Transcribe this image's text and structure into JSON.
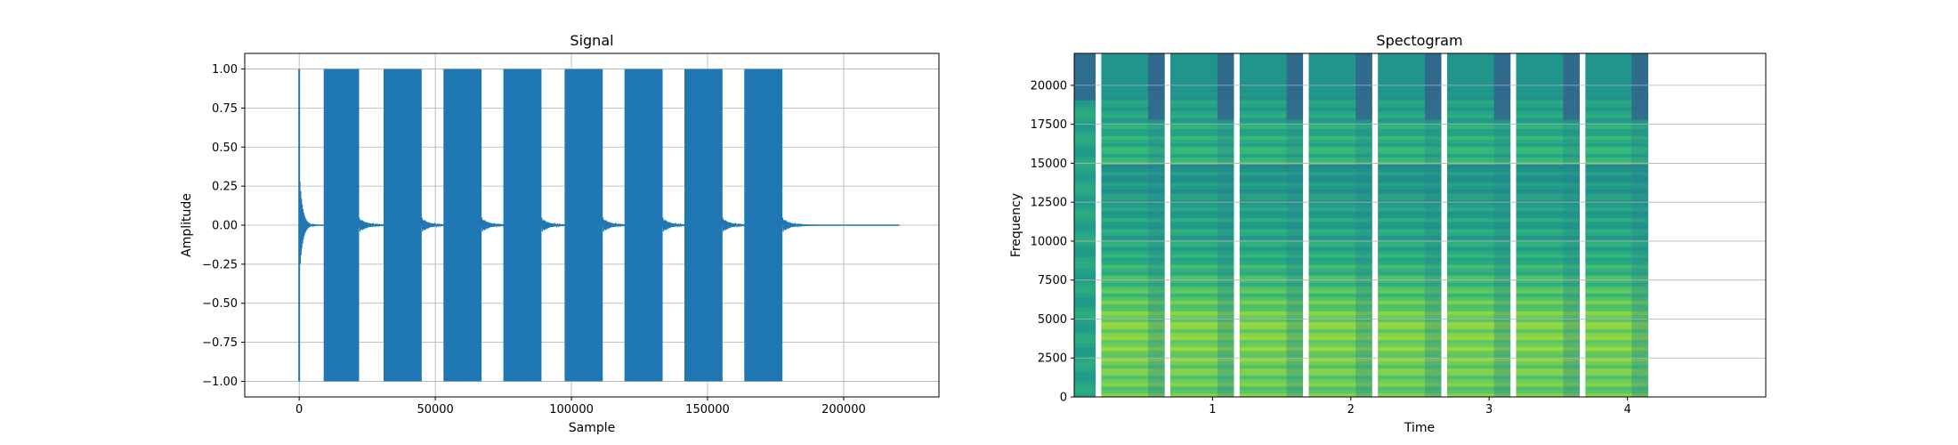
{
  "chart_data": [
    {
      "type": "line",
      "title": "Signal",
      "xlabel": "Sample",
      "ylabel": "Amplitude",
      "xlim": [
        -20000,
        235000
      ],
      "ylim": [
        -1.1,
        1.1
      ],
      "xticks": [
        0,
        50000,
        100000,
        150000,
        200000
      ],
      "xtick_labels": [
        "0",
        "50000",
        "100000",
        "150000",
        "200000"
      ],
      "yticks": [
        1.0,
        0.75,
        0.5,
        0.25,
        0.0,
        -0.25,
        -0.5,
        -0.75,
        -1.0
      ],
      "ytick_labels": [
        "1.00",
        "0.75",
        "0.50",
        "0.25",
        "0.00",
        "−0.25",
        "−0.50",
        "−0.75",
        "−1.00"
      ],
      "grid": true,
      "color": "#1f77b4",
      "impulse": {
        "x": 0,
        "min": -1.0,
        "max": 1.0
      },
      "bursts": [
        {
          "start": 9000,
          "end": 36000
        },
        {
          "start": 31000,
          "end": 58000
        },
        {
          "start": 53000,
          "end": 80000
        },
        {
          "start": 75000,
          "end": 102000
        },
        {
          "start": 97500,
          "end": 124500
        },
        {
          "start": 119500,
          "end": 146500
        },
        {
          "start": 141500,
          "end": 168500
        },
        {
          "start": 163500,
          "end": 190500
        }
      ],
      "burst_full_amplitude_end": [
        22000,
        45000,
        67000,
        89000,
        111500,
        133500,
        155500,
        177500
      ],
      "signal_end": 220500
    },
    {
      "type": "heatmap",
      "title": "Spectogram",
      "xlabel": "Time",
      "ylabel": "Frequency",
      "xlim": [
        0,
        5.0
      ],
      "ylim": [
        0,
        22050
      ],
      "xticks": [
        1,
        2,
        3,
        4
      ],
      "xtick_labels": [
        "1",
        "2",
        "3",
        "4"
      ],
      "yticks": [
        0,
        2500,
        5000,
        7500,
        10000,
        12500,
        15000,
        17500,
        20000
      ],
      "ytick_labels": [
        "0",
        "2500",
        "5000",
        "7500",
        "10000",
        "12500",
        "15000",
        "17500",
        "20000"
      ],
      "grid": true,
      "colormap": "viridis",
      "data_end_time": 4.15,
      "gaps": [
        [
          0.155,
          0.195
        ],
        [
          0.655,
          0.695
        ],
        [
          1.155,
          1.195
        ],
        [
          1.655,
          1.695
        ],
        [
          2.155,
          2.195
        ],
        [
          2.655,
          2.695
        ],
        [
          3.155,
          3.195
        ],
        [
          3.655,
          3.695
        ]
      ],
      "segments": [
        {
          "start": 0.0,
          "end": 0.155,
          "kind": "impulse"
        },
        {
          "start": 0.195,
          "end": 0.655,
          "kind": "tone"
        },
        {
          "start": 0.695,
          "end": 1.155,
          "kind": "tone"
        },
        {
          "start": 1.195,
          "end": 1.655,
          "kind": "tone"
        },
        {
          "start": 1.695,
          "end": 2.155,
          "kind": "tone"
        },
        {
          "start": 2.195,
          "end": 2.655,
          "kind": "tone"
        },
        {
          "start": 2.695,
          "end": 3.155,
          "kind": "tone"
        },
        {
          "start": 3.195,
          "end": 3.655,
          "kind": "tone"
        },
        {
          "start": 3.695,
          "end": 4.15,
          "kind": "tone"
        }
      ]
    }
  ]
}
